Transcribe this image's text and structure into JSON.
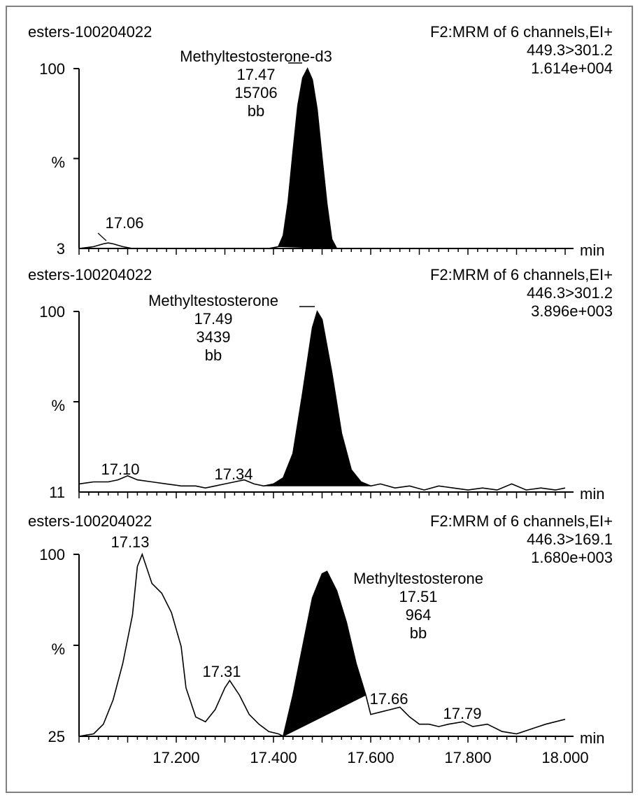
{
  "chart_data": [
    {
      "type": "line",
      "sample": "esters-100204022",
      "function": "F2:MRM of 6 channels,EI+",
      "transition": "449.3>301.2",
      "intensity": "1.614e+004",
      "ylabel": "%",
      "y_top_label": "100",
      "y_bottom_label": "3",
      "x_unit": "min",
      "xlim": [
        17.0,
        18.0
      ],
      "ylim": [
        3,
        100
      ],
      "peak_labels": [
        {
          "lines": [
            "Methyltestosterone-d3",
            "17.47",
            "15706",
            "bb"
          ],
          "x": 17.47
        },
        {
          "lines": [
            "17.06"
          ],
          "x": 17.06
        }
      ],
      "integrated_peak": {
        "start": 17.41,
        "end": 17.53
      },
      "trace": [
        [
          17.0,
          3
        ],
        [
          17.03,
          4
        ],
        [
          17.05,
          5.5
        ],
        [
          17.06,
          6
        ],
        [
          17.07,
          5.5
        ],
        [
          17.09,
          4
        ],
        [
          17.11,
          3
        ],
        [
          17.2,
          3
        ],
        [
          17.3,
          3
        ],
        [
          17.39,
          3
        ],
        [
          17.41,
          4
        ],
        [
          17.42,
          10
        ],
        [
          17.43,
          28
        ],
        [
          17.44,
          55
        ],
        [
          17.45,
          80
        ],
        [
          17.46,
          95
        ],
        [
          17.47,
          100
        ],
        [
          17.48,
          94
        ],
        [
          17.49,
          78
        ],
        [
          17.5,
          52
        ],
        [
          17.51,
          27
        ],
        [
          17.52,
          8
        ],
        [
          17.53,
          3
        ],
        [
          17.6,
          3
        ],
        [
          17.8,
          3
        ],
        [
          18.0,
          3
        ]
      ]
    },
    {
      "type": "line",
      "sample": "esters-100204022",
      "function": "F2:MRM of 6 channels,EI+",
      "transition": "446.3>301.2",
      "intensity": "3.896e+003",
      "ylabel": "%",
      "y_top_label": "100",
      "y_bottom_label": "11",
      "x_unit": "min",
      "xlim": [
        17.0,
        18.0
      ],
      "ylim": [
        11,
        100
      ],
      "peak_labels": [
        {
          "lines": [
            "Methyltestosterone",
            "17.49",
            "3439",
            "bb"
          ],
          "x": 17.49
        },
        {
          "lines": [
            "17.10"
          ],
          "x": 17.1
        },
        {
          "lines": [
            "17.34"
          ],
          "x": 17.34
        }
      ],
      "integrated_peak": {
        "start": 17.38,
        "end": 17.6
      },
      "trace": [
        [
          17.0,
          15
        ],
        [
          17.03,
          16
        ],
        [
          17.06,
          16
        ],
        [
          17.08,
          17
        ],
        [
          17.1,
          19
        ],
        [
          17.12,
          17
        ],
        [
          17.15,
          16
        ],
        [
          17.18,
          15
        ],
        [
          17.21,
          14
        ],
        [
          17.24,
          14
        ],
        [
          17.26,
          13
        ],
        [
          17.28,
          14
        ],
        [
          17.3,
          15
        ],
        [
          17.32,
          16
        ],
        [
          17.34,
          17
        ],
        [
          17.36,
          15
        ],
        [
          17.38,
          14
        ],
        [
          17.4,
          15
        ],
        [
          17.42,
          18
        ],
        [
          17.44,
          30
        ],
        [
          17.46,
          60
        ],
        [
          17.48,
          92
        ],
        [
          17.49,
          100
        ],
        [
          17.5,
          96
        ],
        [
          17.52,
          70
        ],
        [
          17.54,
          40
        ],
        [
          17.56,
          22
        ],
        [
          17.58,
          16
        ],
        [
          17.6,
          14
        ],
        [
          17.62,
          15
        ],
        [
          17.65,
          13
        ],
        [
          17.68,
          14
        ],
        [
          17.71,
          12
        ],
        [
          17.74,
          14
        ],
        [
          17.77,
          13
        ],
        [
          17.8,
          12
        ],
        [
          17.83,
          13
        ],
        [
          17.86,
          12
        ],
        [
          17.89,
          15
        ],
        [
          17.92,
          12
        ],
        [
          17.95,
          13
        ],
        [
          17.98,
          12
        ],
        [
          18.0,
          13
        ]
      ]
    },
    {
      "type": "line",
      "sample": "esters-100204022",
      "function": "F2:MRM of 6 channels,EI+",
      "transition": "446.3>169.1",
      "intensity": "1.680e+003",
      "ylabel": "%",
      "y_top_label": "100",
      "y_bottom_label": "25",
      "x_unit": "min",
      "xlim": [
        17.0,
        18.0
      ],
      "ylim": [
        25,
        100
      ],
      "x_tick_labels": [
        "17.200",
        "17.400",
        "17.600",
        "17.800",
        "18.000"
      ],
      "peak_labels": [
        {
          "lines": [
            "17.13"
          ],
          "x": 17.13
        },
        {
          "lines": [
            "17.31"
          ],
          "x": 17.31
        },
        {
          "lines": [
            "Methyltestosterone",
            "17.51",
            "964",
            "bb"
          ],
          "x": 17.51
        },
        {
          "lines": [
            "17.66"
          ],
          "x": 17.66
        },
        {
          "lines": [
            "17.79"
          ],
          "x": 17.79
        }
      ],
      "integrated_peak": {
        "start": 17.42,
        "end": 17.59
      },
      "trace": [
        [
          17.0,
          25
        ],
        [
          17.03,
          26
        ],
        [
          17.05,
          30
        ],
        [
          17.07,
          40
        ],
        [
          17.09,
          55
        ],
        [
          17.11,
          75
        ],
        [
          17.12,
          95
        ],
        [
          17.13,
          100
        ],
        [
          17.15,
          88
        ],
        [
          17.17,
          84
        ],
        [
          17.19,
          76
        ],
        [
          17.21,
          62
        ],
        [
          17.22,
          45
        ],
        [
          17.24,
          33
        ],
        [
          17.26,
          31
        ],
        [
          17.28,
          36
        ],
        [
          17.3,
          45
        ],
        [
          17.31,
          48
        ],
        [
          17.33,
          42
        ],
        [
          17.35,
          34
        ],
        [
          17.37,
          30
        ],
        [
          17.39,
          27
        ],
        [
          17.41,
          26
        ],
        [
          17.42,
          25
        ],
        [
          17.44,
          42
        ],
        [
          17.46,
          62
        ],
        [
          17.48,
          82
        ],
        [
          17.5,
          92
        ],
        [
          17.51,
          93
        ],
        [
          17.53,
          85
        ],
        [
          17.55,
          72
        ],
        [
          17.57,
          55
        ],
        [
          17.59,
          42
        ],
        [
          17.6,
          34
        ],
        [
          17.62,
          35
        ],
        [
          17.64,
          36
        ],
        [
          17.66,
          37
        ],
        [
          17.68,
          33
        ],
        [
          17.7,
          30
        ],
        [
          17.72,
          30
        ],
        [
          17.74,
          29
        ],
        [
          17.76,
          30
        ],
        [
          17.79,
          31
        ],
        [
          17.81,
          29
        ],
        [
          17.84,
          30
        ],
        [
          17.87,
          27
        ],
        [
          17.9,
          26
        ],
        [
          17.93,
          28
        ],
        [
          17.96,
          30
        ],
        [
          18.0,
          32
        ]
      ]
    }
  ]
}
